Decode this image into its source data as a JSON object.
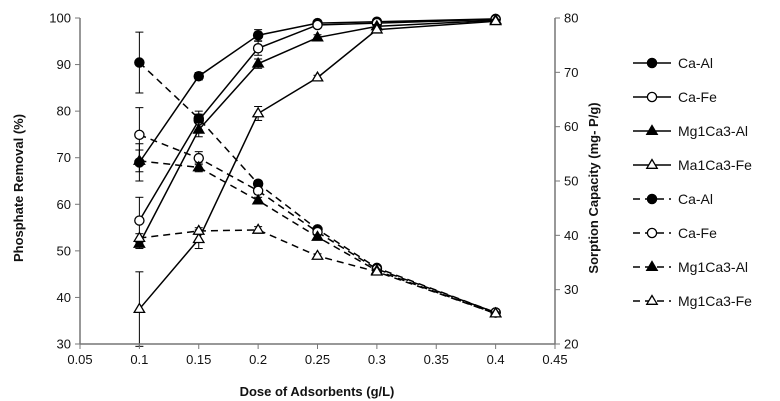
{
  "chart_data": {
    "type": "line",
    "x": [
      0.1,
      0.15,
      0.2,
      0.25,
      0.3,
      0.4
    ],
    "xlabel": "Dose of Adsorbents (g/L)",
    "ylabel": "Phosphate Removal (%)",
    "y2label": "Sorption Capacity (mg- P/g)",
    "xlim": [
      0.05,
      0.45
    ],
    "ylim": [
      30,
      100
    ],
    "y2lim": [
      20,
      80
    ],
    "xticks": [
      "0.05",
      "0.1",
      "0.15",
      "0.2",
      "0.25",
      "0.3",
      "0.35",
      "0.4",
      "0.45"
    ],
    "yticks": [
      "30",
      "40",
      "50",
      "60",
      "70",
      "80",
      "90",
      "100"
    ],
    "y2ticks": [
      "20",
      "30",
      "40",
      "50",
      "60",
      "70",
      "80"
    ],
    "grid": false,
    "legend_position": "right",
    "series": [
      {
        "name": "Ca-Al",
        "axis": "left",
        "line": "solid",
        "marker": "circle",
        "fill": "filled",
        "values": [
          69,
          87.5,
          96.3,
          98.9,
          99.2,
          99.8
        ],
        "errors": [
          4,
          0.8,
          1.2,
          0.6,
          0.3,
          0.2
        ]
      },
      {
        "name": "Ca-Fe",
        "axis": "left",
        "line": "solid",
        "marker": "circle",
        "fill": "open",
        "values": [
          56.5,
          78,
          93.5,
          98.5,
          98.9,
          99.7
        ],
        "errors": [
          5,
          2,
          1.5,
          0.6,
          0.3,
          0.2
        ]
      },
      {
        "name": "Mg1Ca3-Al",
        "axis": "left",
        "line": "solid",
        "marker": "triangle",
        "fill": "filled",
        "values": [
          51.5,
          76,
          90.2,
          95.8,
          98.2,
          99.5
        ],
        "errors": [
          1,
          1.5,
          1,
          0.6,
          0.4,
          0.2
        ]
      },
      {
        "name": "Ma1Ca3-Fe",
        "axis": "left",
        "line": "solid",
        "marker": "triangle",
        "fill": "open",
        "values": [
          37.5,
          52.5,
          79.5,
          87.2,
          97.5,
          99.3
        ],
        "errors": [
          8,
          2,
          1.5,
          0.5,
          0.5,
          0.2
        ]
      },
      {
        "name": "Ca-Al",
        "axis": "right",
        "line": "dashed",
        "marker": "circle",
        "fill": "filled",
        "values": [
          71.8,
          61.5,
          49.5,
          41.1,
          34,
          25.8
        ],
        "errors": [
          5.6,
          0.8,
          0.6,
          0.5,
          0.4,
          0.3
        ]
      },
      {
        "name": "Ca-Fe",
        "axis": "right",
        "line": "dashed",
        "marker": "circle",
        "fill": "open",
        "values": [
          58.5,
          54.2,
          48.2,
          40.6,
          33.8,
          25.8
        ],
        "errors": [
          5,
          1.2,
          0.6,
          0.4,
          0.3,
          0.3
        ]
      },
      {
        "name": "Mg1Ca3-Al",
        "axis": "right",
        "line": "dashed",
        "marker": "triangle",
        "fill": "filled",
        "values": [
          53.7,
          52.5,
          46.4,
          39.7,
          33.5,
          25.6
        ],
        "errors": [
          2,
          0.8,
          0.6,
          0.4,
          0.3,
          0.3
        ]
      },
      {
        "name": "Mg1Ca3-Fe",
        "axis": "right",
        "line": "dashed",
        "marker": "triangle",
        "fill": "open",
        "values": [
          39.5,
          40.8,
          41,
          36.2,
          33.3,
          25.6
        ],
        "errors": [
          0.8,
          0.6,
          0.6,
          0.4,
          0.3,
          0.3
        ]
      }
    ]
  }
}
